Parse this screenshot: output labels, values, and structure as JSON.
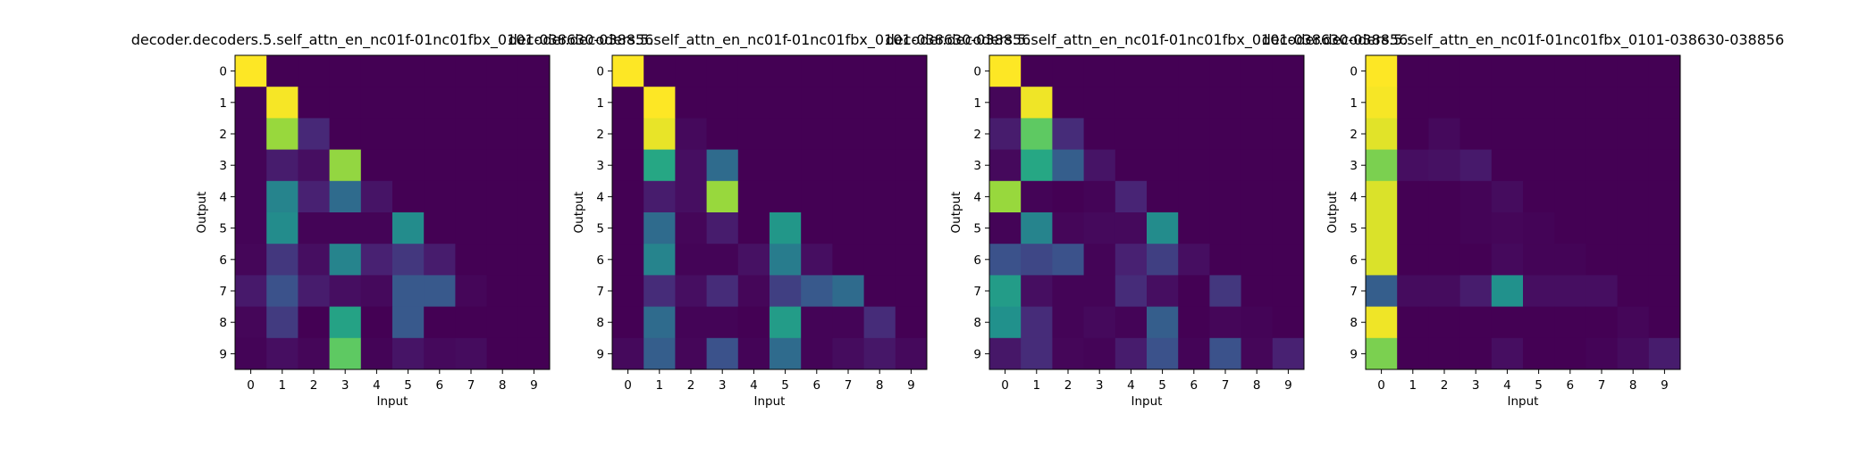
{
  "chart_data": [
    {
      "type": "heatmap",
      "title": "decoder.decoders.5.self_attn_en_nc01f-01nc01fbx_0101-038630-038856",
      "xlabel": "Input",
      "ylabel": "Output",
      "x_ticks": [
        "0",
        "1",
        "2",
        "3",
        "4",
        "5",
        "6",
        "7",
        "8",
        "9"
      ],
      "y_ticks": [
        "0",
        "1",
        "2",
        "3",
        "4",
        "5",
        "6",
        "7",
        "8",
        "9"
      ],
      "colormap": "viridis",
      "values": [
        [
          1.0,
          0.0,
          0.0,
          0.0,
          0.0,
          0.0,
          0.0,
          0.0,
          0.0,
          0.0
        ],
        [
          0.01,
          0.99,
          0.0,
          0.0,
          0.0,
          0.0,
          0.0,
          0.0,
          0.0,
          0.0
        ],
        [
          0.01,
          0.85,
          0.14,
          0.0,
          0.0,
          0.0,
          0.0,
          0.0,
          0.0,
          0.0
        ],
        [
          0.01,
          0.1,
          0.05,
          0.84,
          0.0,
          0.0,
          0.0,
          0.0,
          0.0,
          0.0
        ],
        [
          0.01,
          0.45,
          0.12,
          0.35,
          0.07,
          0.0,
          0.0,
          0.0,
          0.0,
          0.0
        ],
        [
          0.01,
          0.48,
          0.01,
          0.01,
          0.01,
          0.48,
          0.0,
          0.0,
          0.0,
          0.0
        ],
        [
          0.02,
          0.18,
          0.05,
          0.45,
          0.12,
          0.18,
          0.1,
          0.0,
          0.0,
          0.0
        ],
        [
          0.09,
          0.25,
          0.1,
          0.05,
          0.03,
          0.28,
          0.28,
          0.02,
          0.0,
          0.0
        ],
        [
          0.02,
          0.19,
          0.0,
          0.58,
          0.0,
          0.28,
          0.0,
          0.0,
          0.0,
          0.0
        ],
        [
          0.01,
          0.05,
          0.02,
          0.75,
          0.01,
          0.07,
          0.03,
          0.04,
          0.0,
          0.0
        ]
      ]
    },
    {
      "type": "heatmap",
      "title": "decoder.decoders.5.self_attn_en_nc01f-01nc01fbx_0101-038630-038856",
      "xlabel": "Input",
      "ylabel": "Output",
      "x_ticks": [
        "0",
        "1",
        "2",
        "3",
        "4",
        "5",
        "6",
        "7",
        "8",
        "9"
      ],
      "y_ticks": [
        "0",
        "1",
        "2",
        "3",
        "4",
        "5",
        "6",
        "7",
        "8",
        "9"
      ],
      "colormap": "viridis",
      "values": [
        [
          1.0,
          0.0,
          0.0,
          0.0,
          0.0,
          0.0,
          0.0,
          0.0,
          0.0,
          0.0
        ],
        [
          0.0,
          1.0,
          0.0,
          0.0,
          0.0,
          0.0,
          0.0,
          0.0,
          0.0,
          0.0
        ],
        [
          0.0,
          0.97,
          0.03,
          0.0,
          0.0,
          0.0,
          0.0,
          0.0,
          0.0,
          0.0
        ],
        [
          0.0,
          0.6,
          0.05,
          0.35,
          0.0,
          0.0,
          0.0,
          0.0,
          0.0,
          0.0
        ],
        [
          0.0,
          0.1,
          0.05,
          0.85,
          0.0,
          0.0,
          0.0,
          0.0,
          0.0,
          0.0
        ],
        [
          0.0,
          0.35,
          0.02,
          0.1,
          0.0,
          0.53,
          0.0,
          0.0,
          0.0,
          0.0
        ],
        [
          0.0,
          0.45,
          0.01,
          0.01,
          0.06,
          0.42,
          0.05,
          0.0,
          0.0,
          0.0
        ],
        [
          0.0,
          0.15,
          0.05,
          0.15,
          0.02,
          0.2,
          0.28,
          0.35,
          0.0,
          0.0
        ],
        [
          0.0,
          0.35,
          0.01,
          0.01,
          0.0,
          0.55,
          0.01,
          0.01,
          0.15,
          0.0
        ],
        [
          0.03,
          0.3,
          0.02,
          0.25,
          0.01,
          0.35,
          0.01,
          0.04,
          0.08,
          0.03
        ]
      ]
    },
    {
      "type": "heatmap",
      "title": "decoder.decoders.5.self_attn_en_nc01f-01nc01fbx_0101-038630-038856",
      "xlabel": "Input",
      "ylabel": "Output",
      "x_ticks": [
        "0",
        "1",
        "2",
        "3",
        "4",
        "5",
        "6",
        "7",
        "8",
        "9"
      ],
      "y_ticks": [
        "0",
        "1",
        "2",
        "3",
        "4",
        "5",
        "6",
        "7",
        "8",
        "9"
      ],
      "colormap": "viridis",
      "values": [
        [
          1.0,
          0.0,
          0.0,
          0.0,
          0.0,
          0.0,
          0.0,
          0.0,
          0.0,
          0.0
        ],
        [
          0.02,
          0.98,
          0.0,
          0.0,
          0.0,
          0.0,
          0.0,
          0.0,
          0.0,
          0.0
        ],
        [
          0.1,
          0.75,
          0.15,
          0.0,
          0.0,
          0.0,
          0.0,
          0.0,
          0.0,
          0.0
        ],
        [
          0.03,
          0.6,
          0.3,
          0.07,
          0.0,
          0.0,
          0.0,
          0.0,
          0.0,
          0.0
        ],
        [
          0.85,
          0.01,
          0.0,
          0.01,
          0.13,
          0.0,
          0.0,
          0.0,
          0.0,
          0.0
        ],
        [
          0.01,
          0.45,
          0.02,
          0.03,
          0.03,
          0.48,
          0.0,
          0.0,
          0.0,
          0.0
        ],
        [
          0.25,
          0.22,
          0.25,
          0.01,
          0.12,
          0.2,
          0.05,
          0.0,
          0.0,
          0.0
        ],
        [
          0.55,
          0.05,
          0.01,
          0.01,
          0.15,
          0.05,
          0.0,
          0.18,
          0.0,
          0.0
        ],
        [
          0.5,
          0.15,
          0.01,
          0.03,
          0.01,
          0.3,
          0.0,
          0.02,
          0.01,
          0.0
        ],
        [
          0.08,
          0.15,
          0.02,
          0.01,
          0.1,
          0.25,
          0.01,
          0.25,
          0.02,
          0.12
        ]
      ]
    },
    {
      "type": "heatmap",
      "title": "decoder.decoders.5.self_attn_en_nc01f-01nc01fbx_0101-038630-038856",
      "xlabel": "Input",
      "ylabel": "Output",
      "x_ticks": [
        "0",
        "1",
        "2",
        "3",
        "4",
        "5",
        "6",
        "7",
        "8",
        "9"
      ],
      "y_ticks": [
        "0",
        "1",
        "2",
        "3",
        "4",
        "5",
        "6",
        "7",
        "8",
        "9"
      ],
      "colormap": "viridis",
      "values": [
        [
          1.0,
          0.0,
          0.0,
          0.0,
          0.0,
          0.0,
          0.0,
          0.0,
          0.0,
          0.0
        ],
        [
          0.99,
          0.0,
          0.0,
          0.0,
          0.0,
          0.0,
          0.0,
          0.0,
          0.0,
          0.0
        ],
        [
          0.96,
          0.0,
          0.03,
          0.0,
          0.0,
          0.0,
          0.0,
          0.0,
          0.0,
          0.0
        ],
        [
          0.8,
          0.05,
          0.06,
          0.09,
          0.0,
          0.0,
          0.0,
          0.0,
          0.0,
          0.0
        ],
        [
          0.95,
          0.0,
          0.0,
          0.01,
          0.04,
          0.0,
          0.0,
          0.0,
          0.0,
          0.0
        ],
        [
          0.95,
          0.0,
          0.0,
          0.01,
          0.02,
          0.01,
          0.0,
          0.0,
          0.0,
          0.0
        ],
        [
          0.95,
          0.0,
          0.0,
          0.0,
          0.03,
          0.01,
          0.01,
          0.0,
          0.0,
          0.0
        ],
        [
          0.3,
          0.04,
          0.04,
          0.1,
          0.5,
          0.05,
          0.05,
          0.05,
          0.0,
          0.0
        ],
        [
          0.98,
          0.0,
          0.0,
          0.0,
          0.0,
          0.0,
          0.0,
          0.0,
          0.02,
          0.0
        ],
        [
          0.8,
          0.0,
          0.0,
          0.0,
          0.05,
          0.0,
          0.0,
          0.01,
          0.04,
          0.1
        ]
      ]
    }
  ]
}
